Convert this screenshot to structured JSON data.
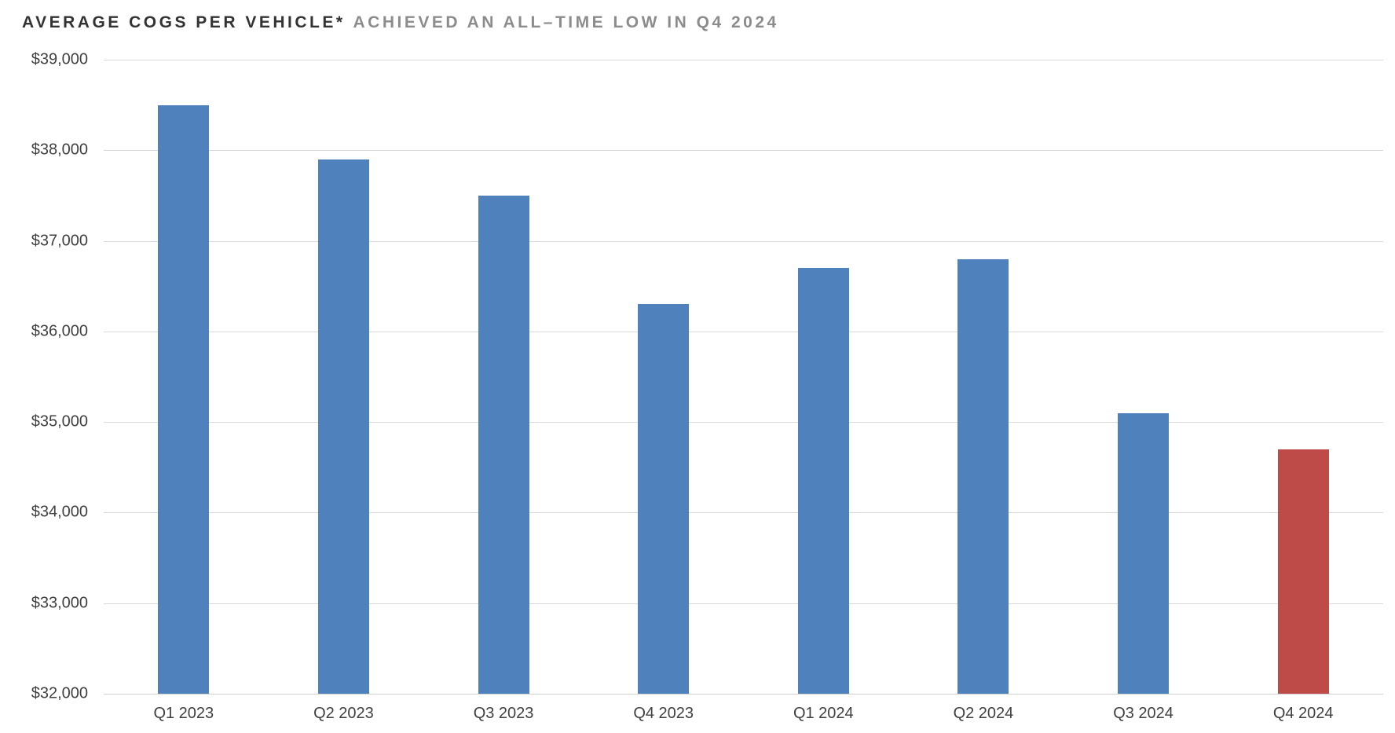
{
  "title": {
    "main": "AVERAGE COGS PER VEHICLE*",
    "subtitle": "ACHIEVED AN ALL–TIME LOW IN Q4 2024"
  },
  "colors": {
    "title_main": "#333333",
    "title_subtitle": "#8c8c8c",
    "axis_text": "#404040",
    "gridline": "#d9d9d9",
    "bar_default": "#4f81bd",
    "bar_highlight": "#be4b48",
    "background": "#ffffff"
  },
  "chart_data": {
    "type": "bar",
    "title": "AVERAGE COGS PER VEHICLE*",
    "subtitle": "ACHIEVED AN ALL–TIME LOW IN Q4 2024",
    "categories": [
      "Q1 2023",
      "Q2 2023",
      "Q3 2023",
      "Q4 2023",
      "Q1 2024",
      "Q2 2024",
      "Q3 2024",
      "Q4 2024"
    ],
    "values": [
      38500,
      37900,
      37500,
      36300,
      36700,
      36800,
      35100,
      34700
    ],
    "bar_colors": [
      "#4f81bd",
      "#4f81bd",
      "#4f81bd",
      "#4f81bd",
      "#4f81bd",
      "#4f81bd",
      "#4f81bd",
      "#be4b48"
    ],
    "highlight_index": 7,
    "xlabel": "",
    "ylabel": "",
    "ylim": [
      32000,
      39000
    ],
    "y_tick_step": 1000,
    "y_ticks": [
      {
        "value": 39000,
        "label": "$39,000"
      },
      {
        "value": 38000,
        "label": "$38,000"
      },
      {
        "value": 37000,
        "label": "$37,000"
      },
      {
        "value": 36000,
        "label": "$36,000"
      },
      {
        "value": 35000,
        "label": "$35,000"
      },
      {
        "value": 34000,
        "label": "$34,000"
      },
      {
        "value": 33000,
        "label": "$33,000"
      },
      {
        "value": 32000,
        "label": "$32,000"
      }
    ],
    "grid": "horizontal",
    "legend": "none"
  }
}
